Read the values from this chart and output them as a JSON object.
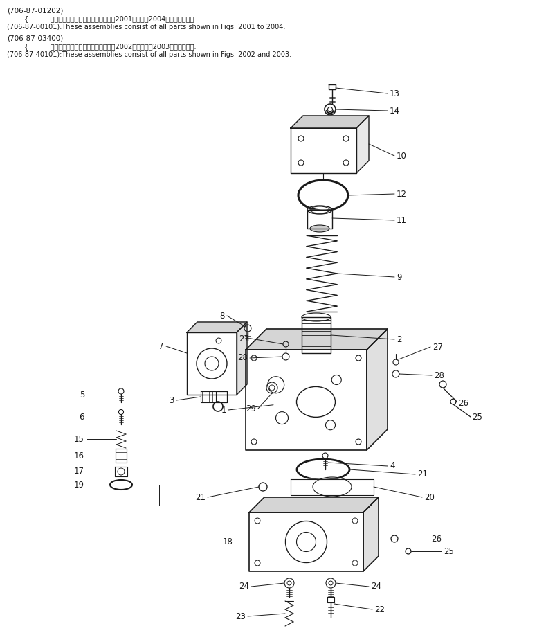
{
  "bg_color": "#ffffff",
  "line_color": "#1a1a1a",
  "fig_width": 7.76,
  "fig_height": 9.3,
  "dpi": 100,
  "header_lines": [
    [
      "(706-87-01202)",
      10,
      10,
      7.5
    ],
    [
      "        {          これらのアセンブリの構成部品は第2001図から第2004図まで含みます.",
      10,
      22,
      7.0
    ],
    [
      "(706-87-00101):These assemblies consist of all parts shown in Figs. 2001 to 2004.",
      10,
      34,
      7.0
    ],
    [
      "(706-87-03400)",
      10,
      50,
      7.5
    ],
    [
      "        {          これらのアセンブリの構成部品は第2002図および第2003図を含みます.",
      10,
      62,
      7.0
    ],
    [
      "(706-87-40101):These assemblies consist of all parts shown in Figs. 2002 and 2003.",
      10,
      74,
      7.0
    ]
  ]
}
